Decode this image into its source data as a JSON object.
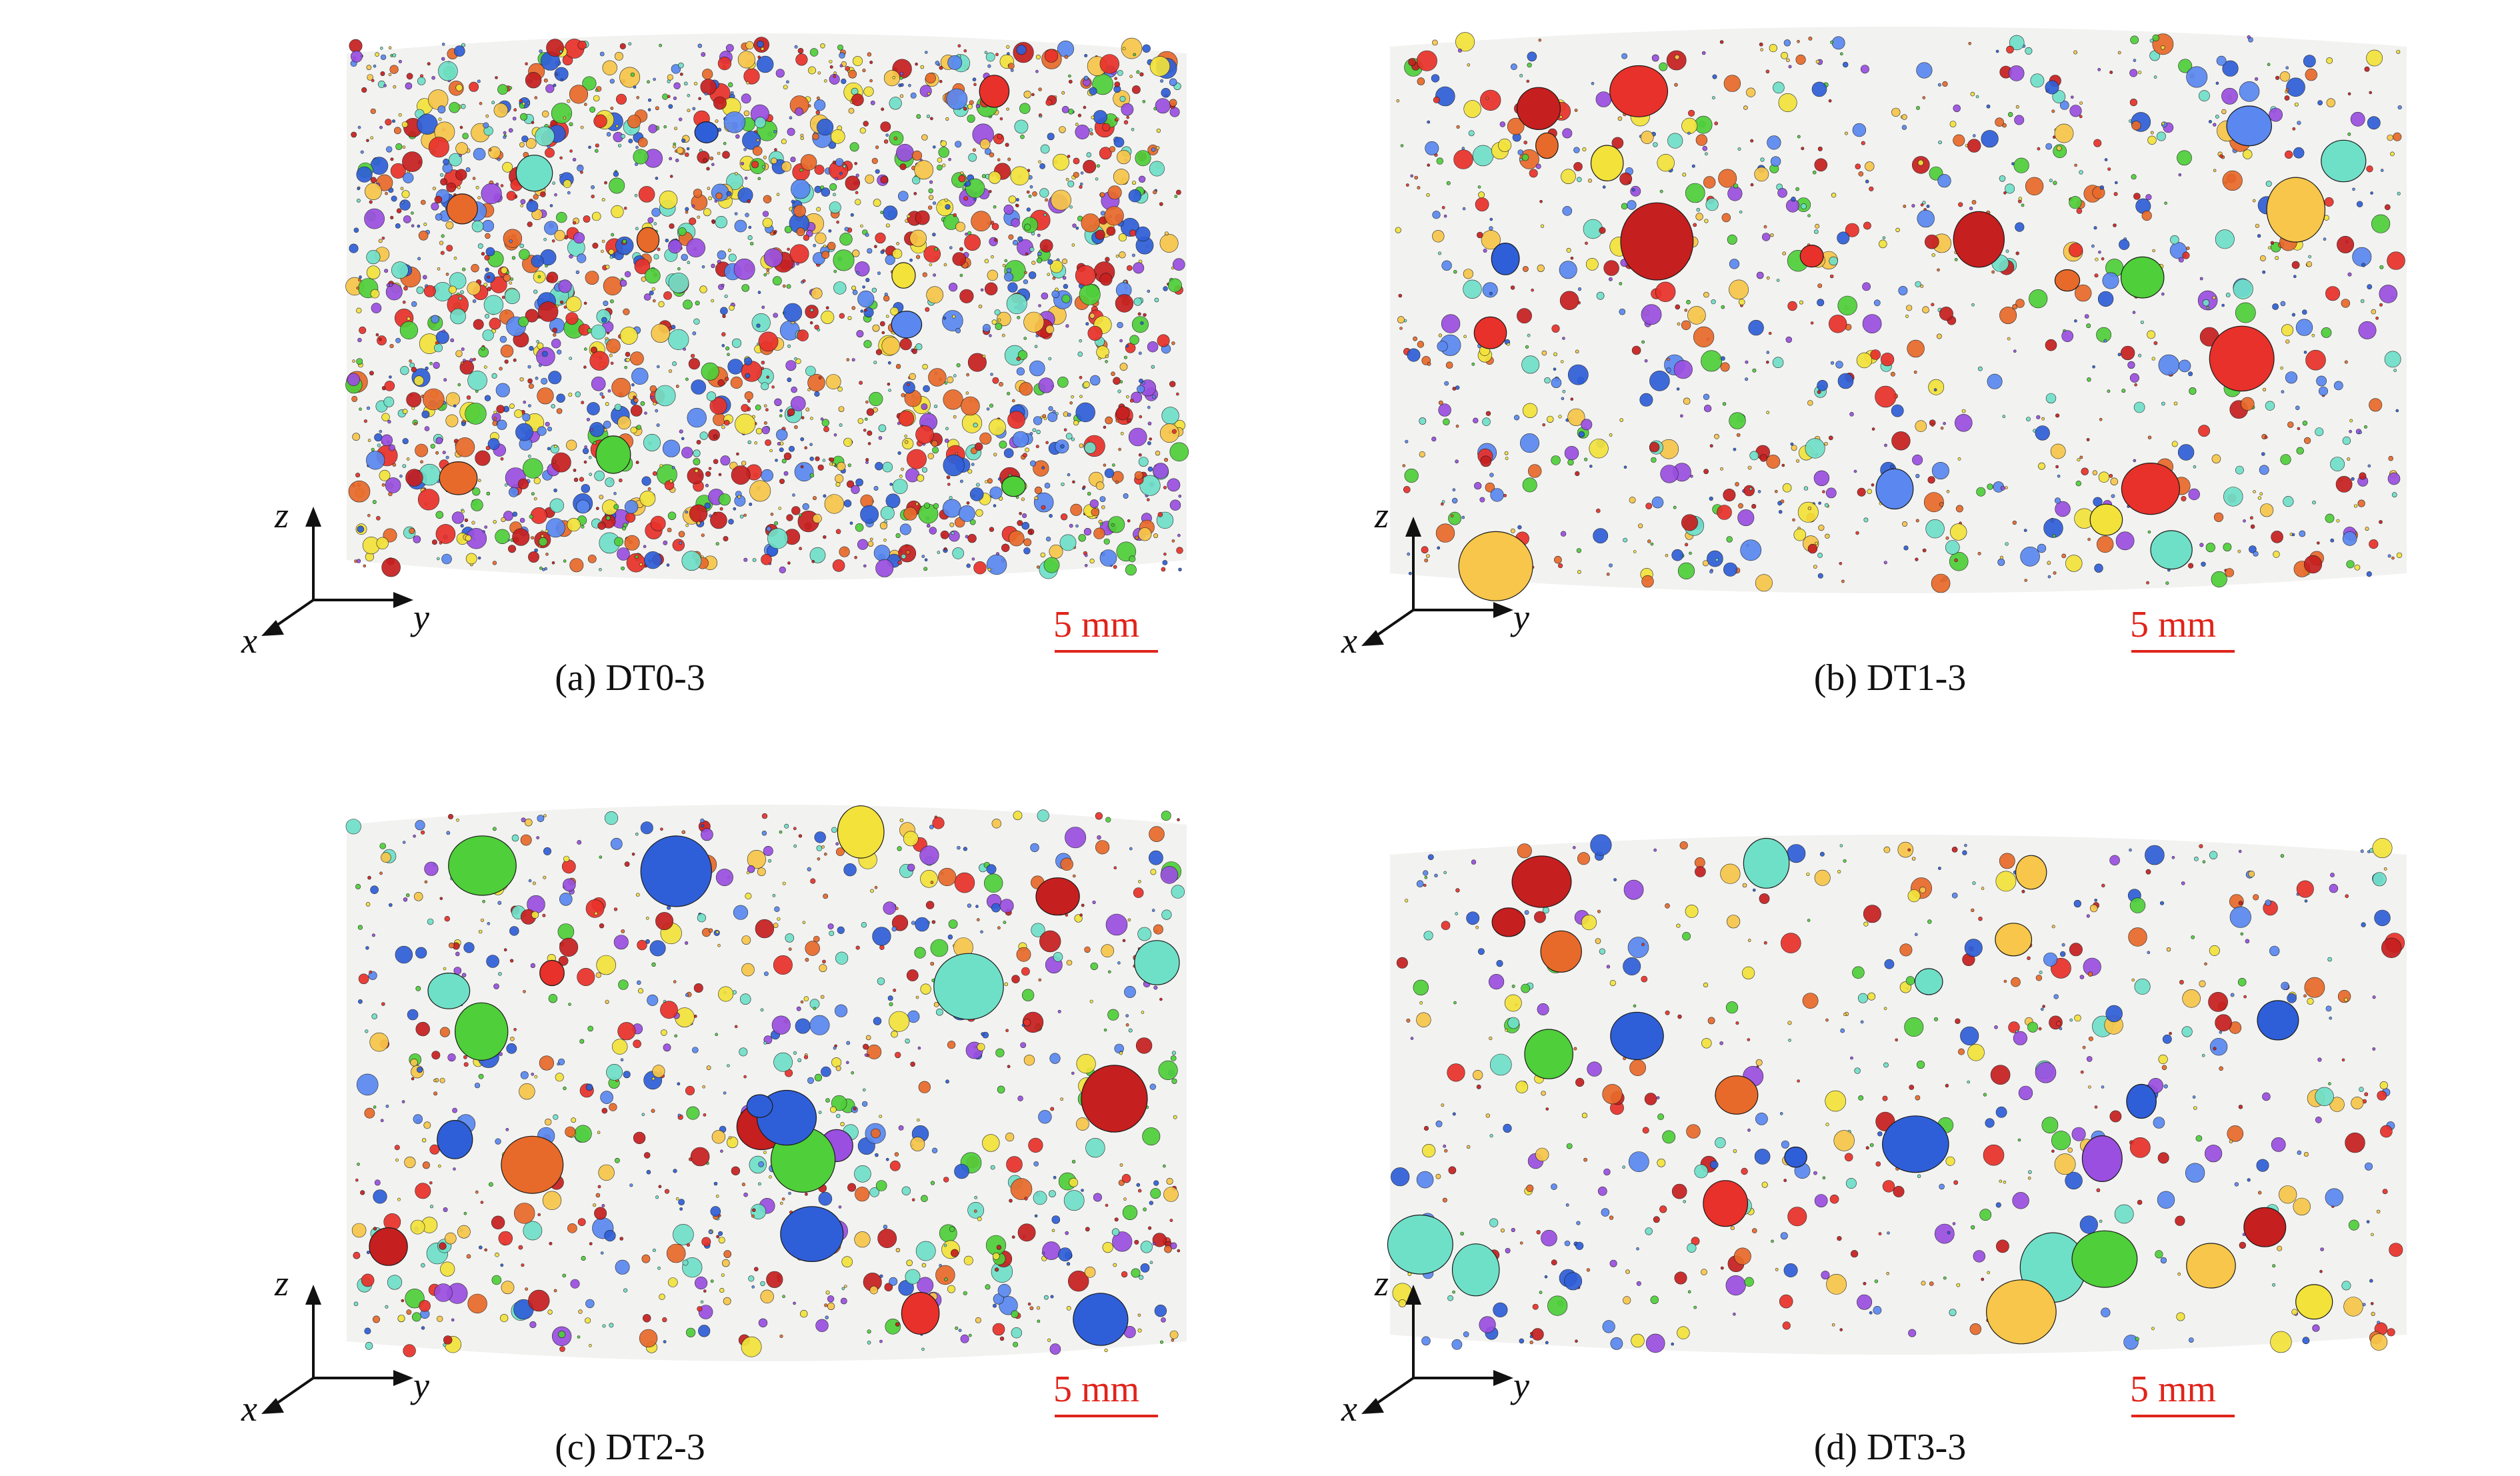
{
  "panels": [
    {
      "caption": "(a) DT0-3",
      "scale_label": "5 mm",
      "axes": {
        "z": "z",
        "x": "x",
        "y": "y"
      },
      "density": 1.0
    },
    {
      "caption": "(b) DT1-3",
      "scale_label": "5 mm",
      "axes": {
        "z": "z",
        "x": "x",
        "y": "y"
      },
      "density": 0.45
    },
    {
      "caption": "(c) DT2-3",
      "scale_label": "5 mm",
      "axes": {
        "z": "z",
        "x": "x",
        "y": "y"
      },
      "density": 0.4
    },
    {
      "caption": "(d) DT3-3",
      "scale_label": "5 mm",
      "axes": {
        "z": "z",
        "x": "x",
        "y": "y"
      },
      "density": 0.25
    }
  ],
  "colors": {
    "pore_palette": [
      "#e8312a",
      "#2f5fd8",
      "#f2e23a",
      "#4fcf3a",
      "#9a4fe0",
      "#e86a2a",
      "#6fe0c8",
      "#c61f1f",
      "#5a88f0",
      "#f7c64a"
    ],
    "scale_bar": "#e0241b",
    "cylinder_fill": "#ececea"
  }
}
